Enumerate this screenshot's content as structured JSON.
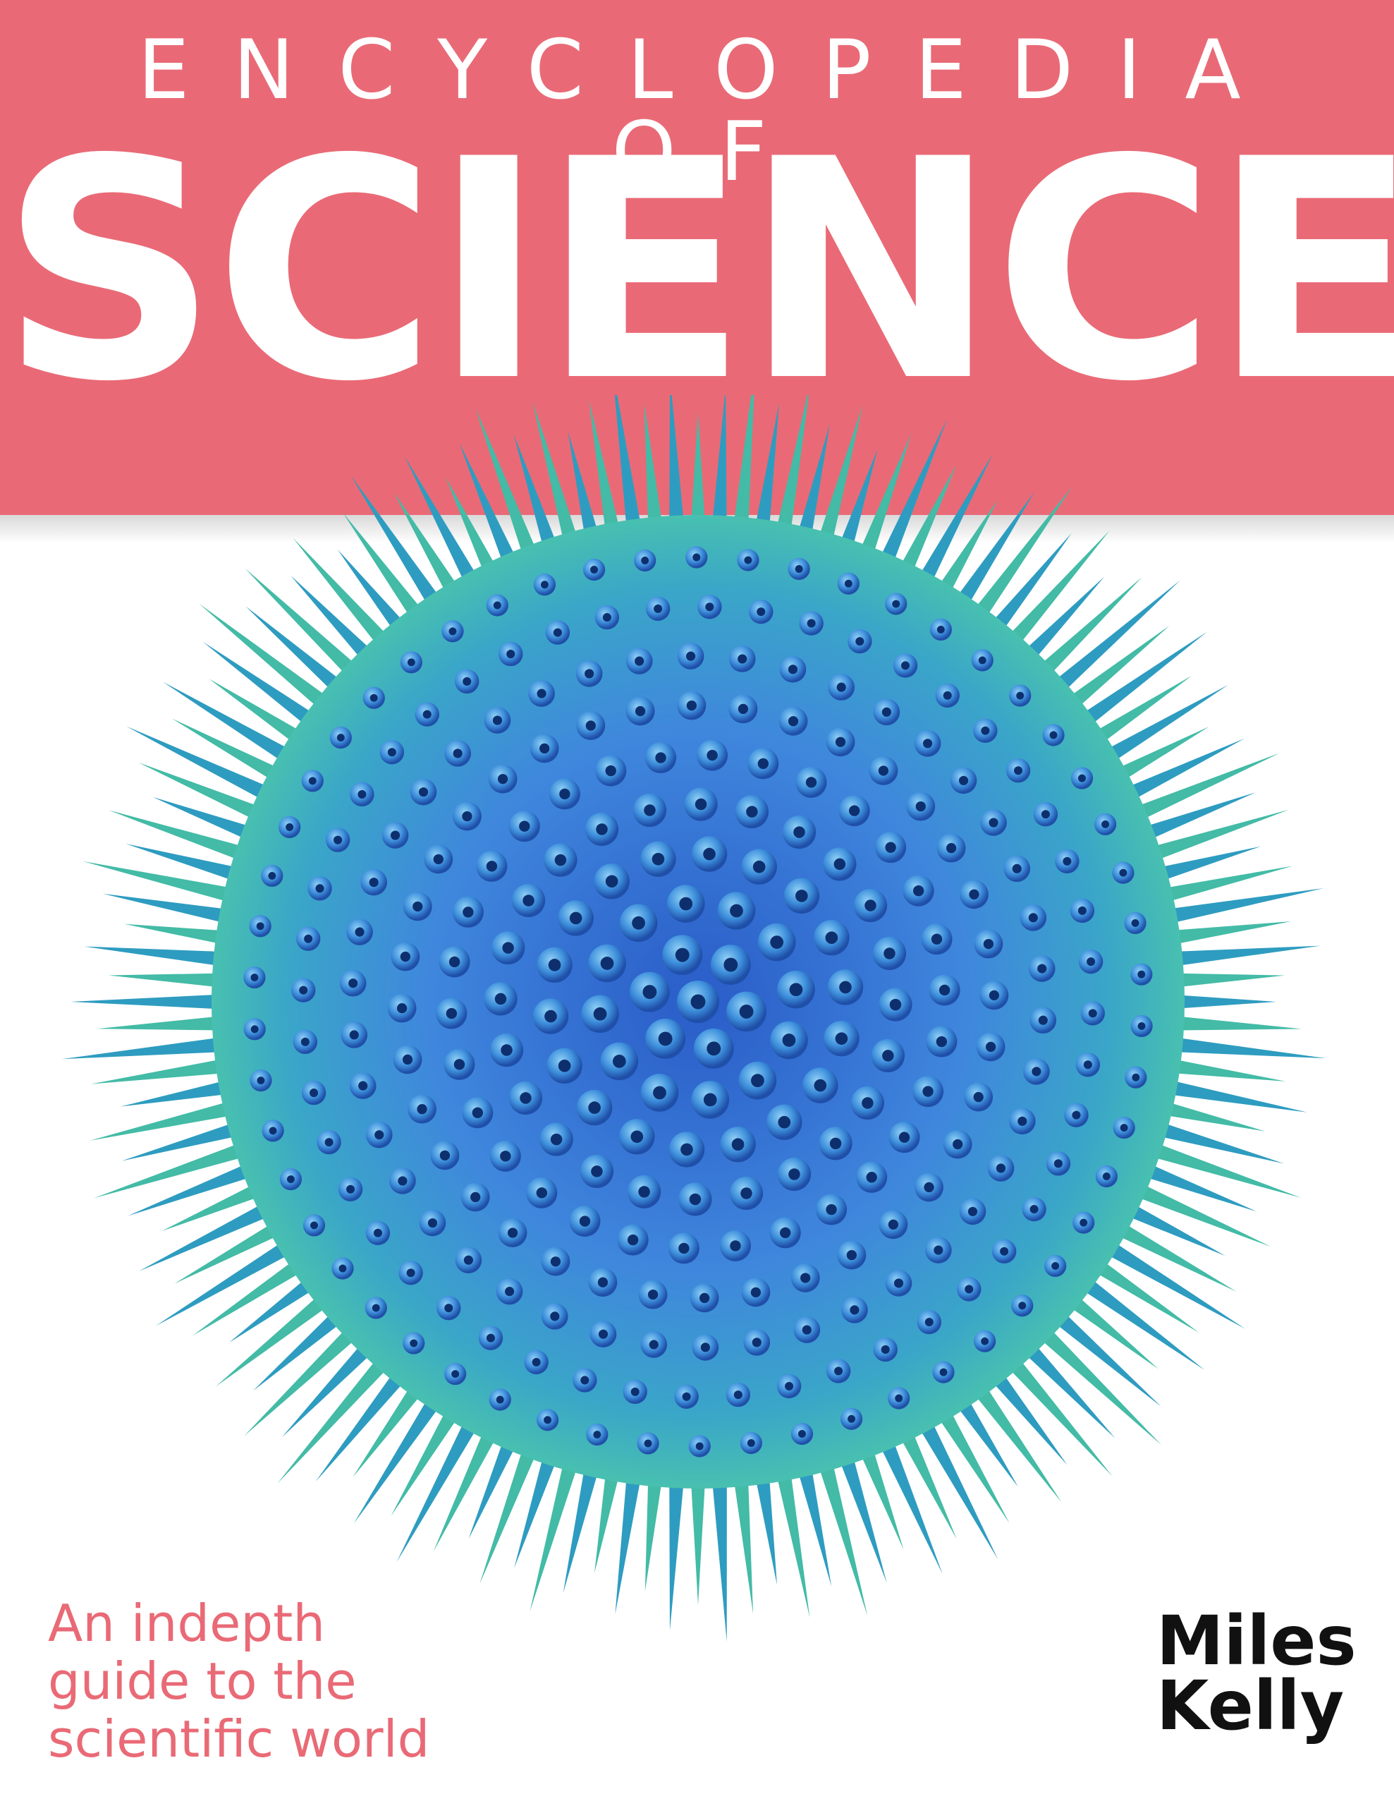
{
  "cover": {
    "series_title": "ENCYCLOPEDIA OF",
    "main_title": "SCIENCE",
    "tagline": [
      "An indepth",
      "guide to the",
      "scientific world"
    ],
    "publisher": [
      "Miles",
      "Kelly"
    ],
    "cover_image": "blue spiky virus-like sphere"
  },
  "colors": {
    "banner": "#e96a76",
    "title_text": "#ffffff",
    "tagline_text": "#e96a76",
    "sphere_core": "#3b7fd8",
    "sphere_spikes": "#2fb3a0",
    "logo_text": "#111111"
  }
}
